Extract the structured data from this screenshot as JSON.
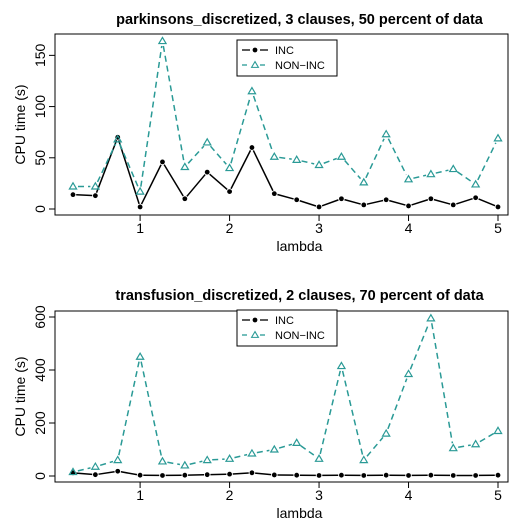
{
  "chart_data": [
    {
      "type": "line",
      "title": "parkinsons_discretized, 3 clauses, 50 percent of data",
      "xlabel": "lambda",
      "ylabel": "CPU time (s)",
      "xlim": [
        0.25,
        5
      ],
      "ylim": [
        0,
        165
      ],
      "x_ticks": [
        "1",
        "2",
        "3",
        "4",
        "5"
      ],
      "y_ticks": [
        "0",
        "50",
        "100",
        "150"
      ],
      "grid": false,
      "legend": "top-center",
      "x": [
        0.25,
        0.5,
        0.75,
        1.0,
        1.25,
        1.5,
        1.75,
        2.0,
        2.25,
        2.5,
        2.75,
        3.0,
        3.25,
        3.5,
        3.75,
        4.0,
        4.25,
        4.5,
        4.75,
        5.0
      ],
      "series": [
        {
          "name": "INC",
          "color": "#000000",
          "style": "solid",
          "marker": "filled-circle",
          "values": [
            14,
            13,
            70,
            2,
            46,
            10,
            36,
            17,
            60,
            15,
            9,
            2,
            10,
            4,
            9,
            3,
            10,
            4,
            11,
            2
          ]
        },
        {
          "name": "NON−INC",
          "color": "#2a9a96",
          "style": "dashed",
          "marker": "open-triangle",
          "values": [
            22,
            22,
            68,
            17,
            164,
            41,
            65,
            40,
            115,
            51,
            48,
            43,
            51,
            26,
            73,
            29,
            34,
            39,
            24,
            69
          ]
        }
      ]
    },
    {
      "type": "line",
      "title": "transfusion_discretized, 2 clauses, 70 percent of data",
      "xlabel": "lambda",
      "ylabel": "CPU time (s)",
      "xlim": [
        0.25,
        5
      ],
      "ylim": [
        0,
        600
      ],
      "x_ticks": [
        "1",
        "2",
        "3",
        "4",
        "5"
      ],
      "y_ticks": [
        "0",
        "200",
        "400",
        "600"
      ],
      "grid": false,
      "legend": "top-center",
      "x": [
        0.25,
        0.5,
        0.75,
        1.0,
        1.25,
        1.5,
        1.75,
        2.0,
        2.25,
        2.5,
        2.75,
        3.0,
        3.25,
        3.5,
        3.75,
        4.0,
        4.25,
        4.5,
        4.75,
        5.0
      ],
      "series": [
        {
          "name": "INC",
          "color": "#000000",
          "style": "solid",
          "marker": "filled-circle",
          "values": [
            12,
            5,
            18,
            3,
            2,
            3,
            5,
            7,
            12,
            4,
            3,
            2,
            3,
            2,
            3,
            2,
            3,
            2,
            2,
            3
          ]
        },
        {
          "name": "NON−INC",
          "color": "#2a9a96",
          "style": "dashed",
          "marker": "open-triangle",
          "values": [
            15,
            35,
            60,
            450,
            55,
            40,
            60,
            65,
            85,
            100,
            125,
            65,
            415,
            60,
            160,
            385,
            595,
            105,
            120,
            170
          ]
        }
      ]
    }
  ]
}
